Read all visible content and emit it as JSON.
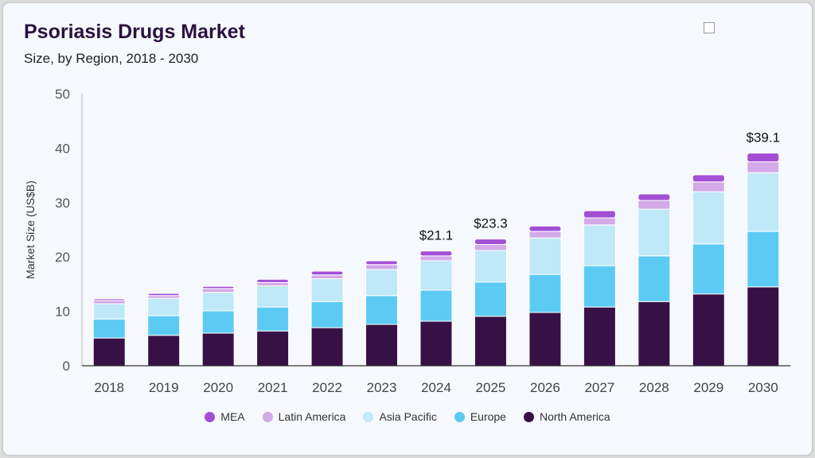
{
  "header": {
    "title": "Psoriasis Drugs Market",
    "subtitle": "Size, by Region, 2018 - 2030"
  },
  "logo_icon": "broken-image-icon",
  "chart_data": {
    "type": "bar",
    "stacked": true,
    "title": "Psoriasis Drugs Market",
    "subtitle": "Size, by Region, 2018 - 2030",
    "xlabel": "",
    "ylabel": "Market Size (US$B)",
    "ylim": [
      0,
      50
    ],
    "yticks": [
      0,
      10,
      20,
      30,
      40,
      50
    ],
    "grid": false,
    "legend_position": "bottom",
    "categories": [
      "2018",
      "2019",
      "2020",
      "2021",
      "2022",
      "2023",
      "2024",
      "2025",
      "2026",
      "2027",
      "2028",
      "2029",
      "2030"
    ],
    "series": [
      {
        "name": "North America",
        "color": "#371046",
        "values": [
          5.1,
          5.6,
          6.0,
          6.4,
          7.0,
          7.6,
          8.2,
          9.1,
          9.8,
          10.8,
          11.8,
          13.2,
          14.5
        ]
      },
      {
        "name": "Europe",
        "color": "#5ccbf4",
        "values": [
          3.5,
          3.6,
          4.1,
          4.4,
          4.8,
          5.3,
          5.7,
          6.3,
          7.0,
          7.6,
          8.4,
          9.2,
          10.2
        ]
      },
      {
        "name": "Asia Pacific",
        "color": "#bfe8f9",
        "values": [
          2.8,
          3.2,
          3.4,
          3.9,
          4.2,
          4.8,
          5.4,
          5.8,
          6.7,
          7.5,
          8.6,
          9.6,
          10.8
        ]
      },
      {
        "name": "Latin America",
        "color": "#d3a9e8",
        "values": [
          0.6,
          0.5,
          0.7,
          0.6,
          0.7,
          0.9,
          0.9,
          1.1,
          1.2,
          1.3,
          1.6,
          1.8,
          2.0
        ]
      },
      {
        "name": "MEA",
        "color": "#a24fd6",
        "values": [
          0.3,
          0.4,
          0.4,
          0.6,
          0.7,
          0.7,
          0.9,
          1.0,
          1.0,
          1.3,
          1.2,
          1.3,
          1.6
        ]
      }
    ],
    "annotations": [
      {
        "category": "2024",
        "label": "$21.1"
      },
      {
        "category": "2025",
        "label": "$23.3"
      },
      {
        "category": "2030",
        "label": "$39.1"
      }
    ]
  },
  "legend_order": [
    "MEA",
    "Latin America",
    "Asia Pacific",
    "Europe",
    "North America"
  ]
}
